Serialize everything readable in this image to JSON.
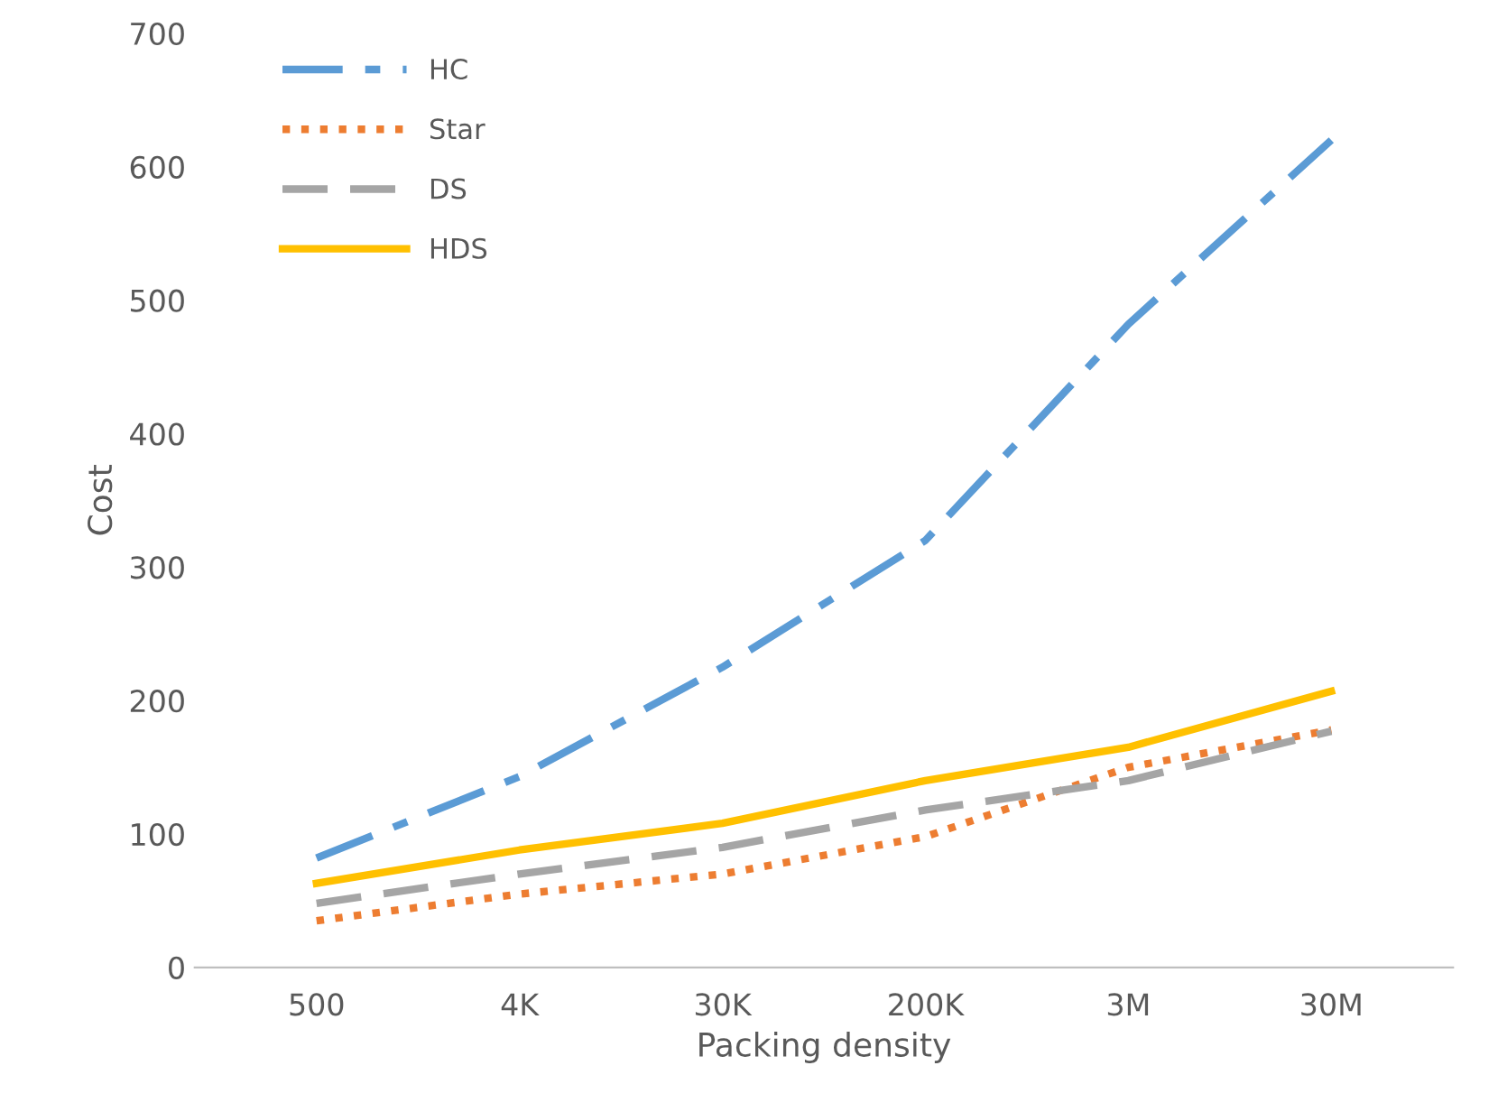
{
  "chart_data": {
    "type": "line",
    "xlabel": "Packing density",
    "ylabel": "Cost",
    "categories": [
      "500",
      "4K",
      "30K",
      "200K",
      "3M",
      "30M"
    ],
    "series": [
      {
        "name": "HC",
        "color": "#5b9bd5",
        "line_style": "dashdot",
        "values": [
          82,
          143,
          225,
          320,
          482,
          620
        ]
      },
      {
        "name": "Star",
        "color": "#ed7d31",
        "line_style": "dotted",
        "values": [
          35,
          55,
          70,
          98,
          150,
          178
        ]
      },
      {
        "name": "DS",
        "color": "#a5a5a5",
        "line_style": "dashed",
        "values": [
          48,
          70,
          90,
          118,
          140,
          177
        ]
      },
      {
        "name": "HDS",
        "color": "#ffc000",
        "line_style": "solid",
        "values": [
          63,
          88,
          108,
          140,
          165,
          207
        ]
      }
    ],
    "ylim": [
      0,
      700
    ],
    "yticks": [
      0,
      100,
      200,
      300,
      400,
      500,
      600,
      700
    ],
    "grid": false,
    "legend": "top left",
    "marker": "none"
  }
}
